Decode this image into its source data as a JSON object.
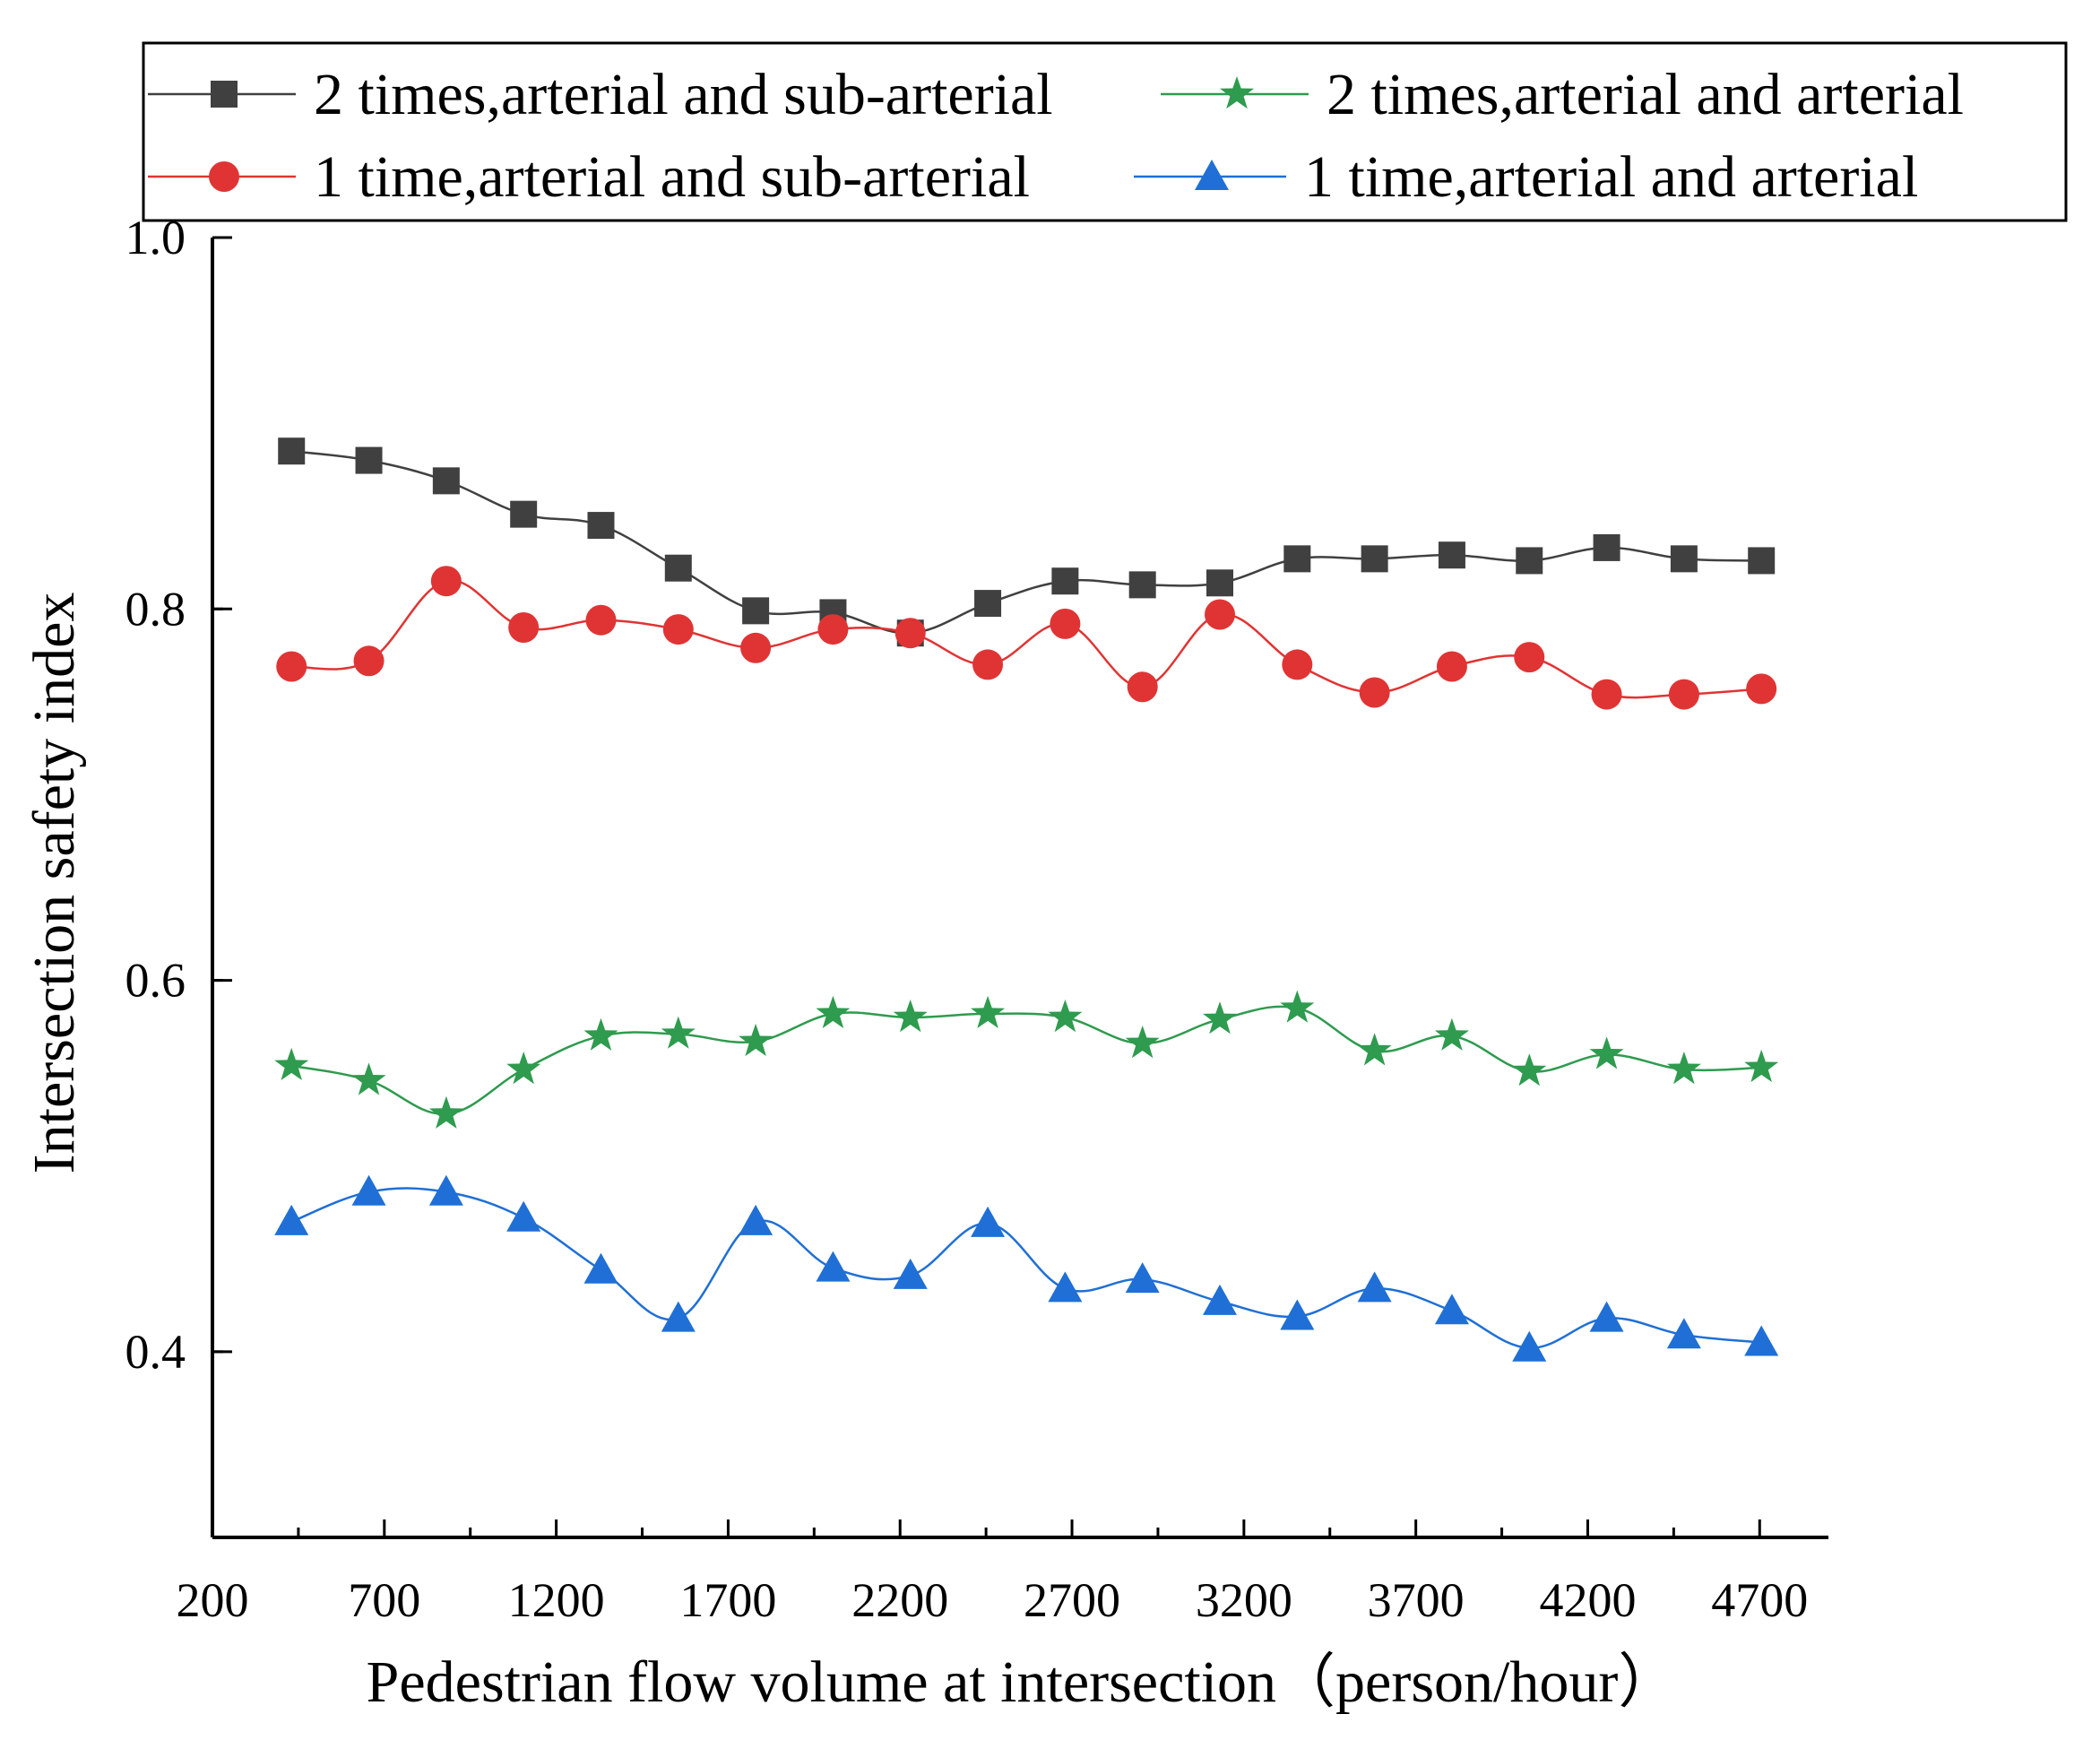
{
  "chart_data": {
    "type": "line",
    "title": "",
    "xlabel": "Pedestrian flow volume at intersection（person/hour）",
    "ylabel": "Intersection safety index",
    "xlim": [
      200,
      4900
    ],
    "ylim": [
      0.3,
      1.0
    ],
    "x_ticks": [
      200,
      700,
      1200,
      1700,
      2200,
      2700,
      3200,
      3700,
      4200,
      4700
    ],
    "x_tick_labels": [
      "200",
      "700",
      "1200",
      "1700",
      "2200",
      "2700",
      "3200",
      "3700",
      "4200",
      "4700"
    ],
    "y_ticks": [
      0.4,
      0.6,
      0.8,
      1.0
    ],
    "y_tick_labels": [
      "0.4",
      "0.6",
      "0.8",
      "1.0"
    ],
    "grid": false,
    "legend_position": "top",
    "x": [
      430,
      655,
      880,
      1105,
      1330,
      1555,
      1780,
      2005,
      2230,
      2455,
      2680,
      2905,
      3130,
      3355,
      3580,
      3805,
      4030,
      4255,
      4480,
      4705
    ],
    "series": [
      {
        "name": "2 times,arterial and sub-arterial",
        "color": "#404040",
        "marker": "square",
        "values": [
          0.885,
          0.88,
          0.869,
          0.851,
          0.845,
          0.822,
          0.799,
          0.798,
          0.787,
          0.803,
          0.815,
          0.813,
          0.814,
          0.827,
          0.827,
          0.829,
          0.826,
          0.833,
          0.827,
          0.826
        ]
      },
      {
        "name": "2 times,arterial and arterial",
        "color": "#2e9b4e",
        "marker": "star",
        "values": [
          0.554,
          0.546,
          0.528,
          0.552,
          0.57,
          0.571,
          0.567,
          0.582,
          0.58,
          0.582,
          0.58,
          0.566,
          0.579,
          0.585,
          0.562,
          0.57,
          0.551,
          0.56,
          0.552,
          0.553
        ]
      },
      {
        "name": "1 time,arterial and sub-arterial",
        "color": "#e03434",
        "marker": "circle",
        "values": [
          0.769,
          0.772,
          0.815,
          0.79,
          0.794,
          0.789,
          0.779,
          0.789,
          0.787,
          0.77,
          0.792,
          0.758,
          0.797,
          0.77,
          0.755,
          0.769,
          0.774,
          0.754,
          0.754,
          0.757
        ]
      },
      {
        "name": "1 time,arterial and arterial",
        "color": "#1f6fd6",
        "marker": "triangle",
        "values": [
          0.47,
          0.486,
          0.486,
          0.472,
          0.444,
          0.418,
          0.47,
          0.445,
          0.441,
          0.469,
          0.434,
          0.439,
          0.427,
          0.419,
          0.434,
          0.422,
          0.402,
          0.418,
          0.409,
          0.405
        ]
      }
    ]
  }
}
